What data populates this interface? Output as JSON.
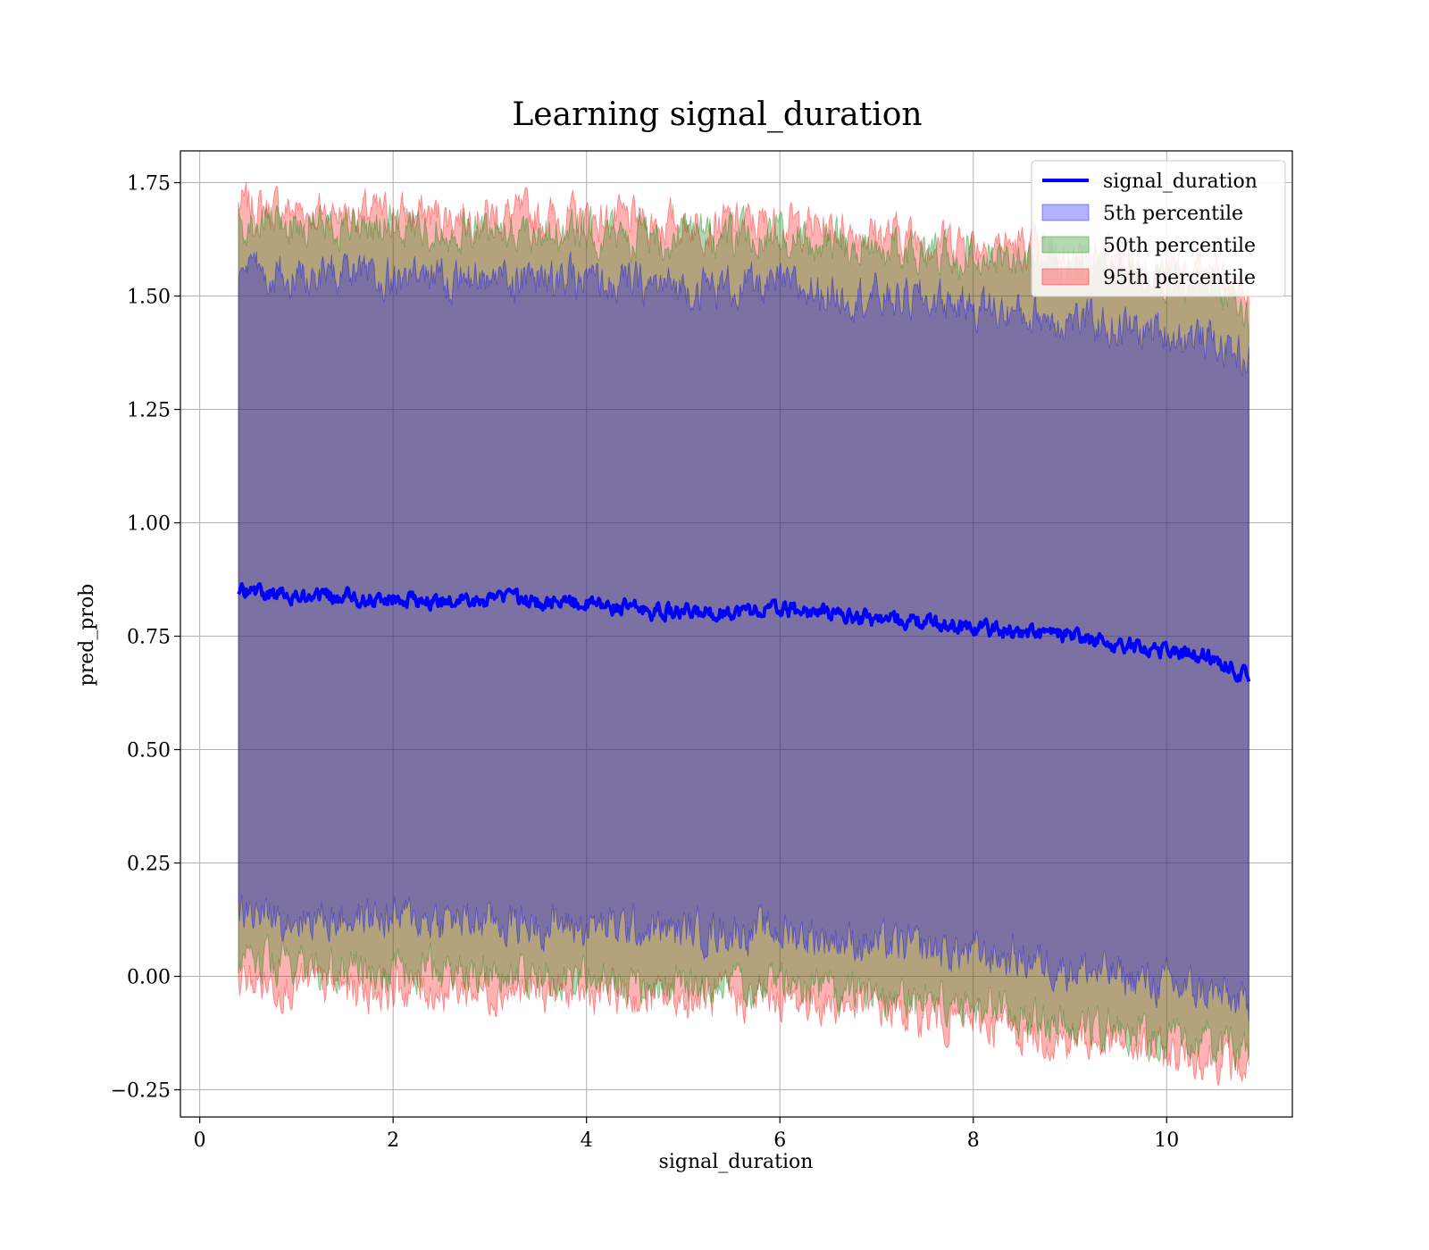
{
  "chart_data": {
    "type": "area",
    "title": "Learning signal_duration",
    "xlabel": "signal_duration",
    "ylabel": "pred_prob",
    "xlim": [
      -0.2,
      11.3
    ],
    "ylim": [
      -0.31,
      1.82
    ],
    "xticks": [
      0,
      2,
      4,
      6,
      8,
      10
    ],
    "xtick_labels": [
      "0",
      "2",
      "4",
      "6",
      "8",
      "10"
    ],
    "yticks": [
      -0.25,
      0.0,
      0.25,
      0.5,
      0.75,
      1.0,
      1.25,
      1.5,
      1.75
    ],
    "ytick_labels": [
      "−0.25",
      "0.00",
      "0.25",
      "0.50",
      "0.75",
      "1.00",
      "1.25",
      "1.50",
      "1.75"
    ],
    "grid": true,
    "legend_position": "top-right",
    "x": [
      0.4,
      1.0,
      2.0,
      3.0,
      4.0,
      5.0,
      6.0,
      7.0,
      7.5,
      8.0,
      8.5,
      9.0,
      9.5,
      10.0,
      10.5,
      10.85
    ],
    "series": [
      {
        "name": "signal_duration",
        "kind": "line",
        "color": "#0000ff",
        "values": [
          0.85,
          0.84,
          0.83,
          0.83,
          0.82,
          0.8,
          0.81,
          0.79,
          0.78,
          0.77,
          0.76,
          0.75,
          0.73,
          0.72,
          0.7,
          0.66
        ]
      },
      {
        "name": "5th percentile",
        "kind": "band",
        "color": "#0000ff",
        "lower": [
          0.14,
          0.13,
          0.13,
          0.12,
          0.11,
          0.1,
          0.1,
          0.07,
          0.06,
          0.05,
          0.04,
          0.02,
          0.0,
          -0.02,
          -0.04,
          -0.07
        ],
        "upper": [
          1.55,
          1.55,
          1.54,
          1.54,
          1.53,
          1.52,
          1.52,
          1.5,
          1.49,
          1.48,
          1.46,
          1.45,
          1.43,
          1.42,
          1.4,
          1.36
        ]
      },
      {
        "name": "50th percentile",
        "kind": "band",
        "color": "#008000",
        "lower": [
          0.03,
          0.02,
          0.01,
          0.01,
          0.0,
          -0.02,
          -0.02,
          -0.04,
          -0.06,
          -0.07,
          -0.09,
          -0.11,
          -0.12,
          -0.14,
          -0.15,
          -0.18
        ],
        "upper": [
          1.66,
          1.66,
          1.65,
          1.65,
          1.64,
          1.63,
          1.63,
          1.61,
          1.6,
          1.59,
          1.58,
          1.56,
          1.55,
          1.53,
          1.52,
          1.47
        ]
      },
      {
        "name": "95th percentile",
        "kind": "band",
        "color": "#ff0000",
        "lower": [
          -0.01,
          -0.02,
          -0.03,
          -0.03,
          -0.04,
          -0.05,
          -0.05,
          -0.07,
          -0.09,
          -0.1,
          -0.12,
          -0.14,
          -0.15,
          -0.17,
          -0.18,
          -0.21
        ],
        "upper": [
          1.7,
          1.69,
          1.68,
          1.68,
          1.67,
          1.66,
          1.66,
          1.64,
          1.63,
          1.62,
          1.61,
          1.59,
          1.58,
          1.56,
          1.55,
          1.5
        ]
      }
    ]
  }
}
